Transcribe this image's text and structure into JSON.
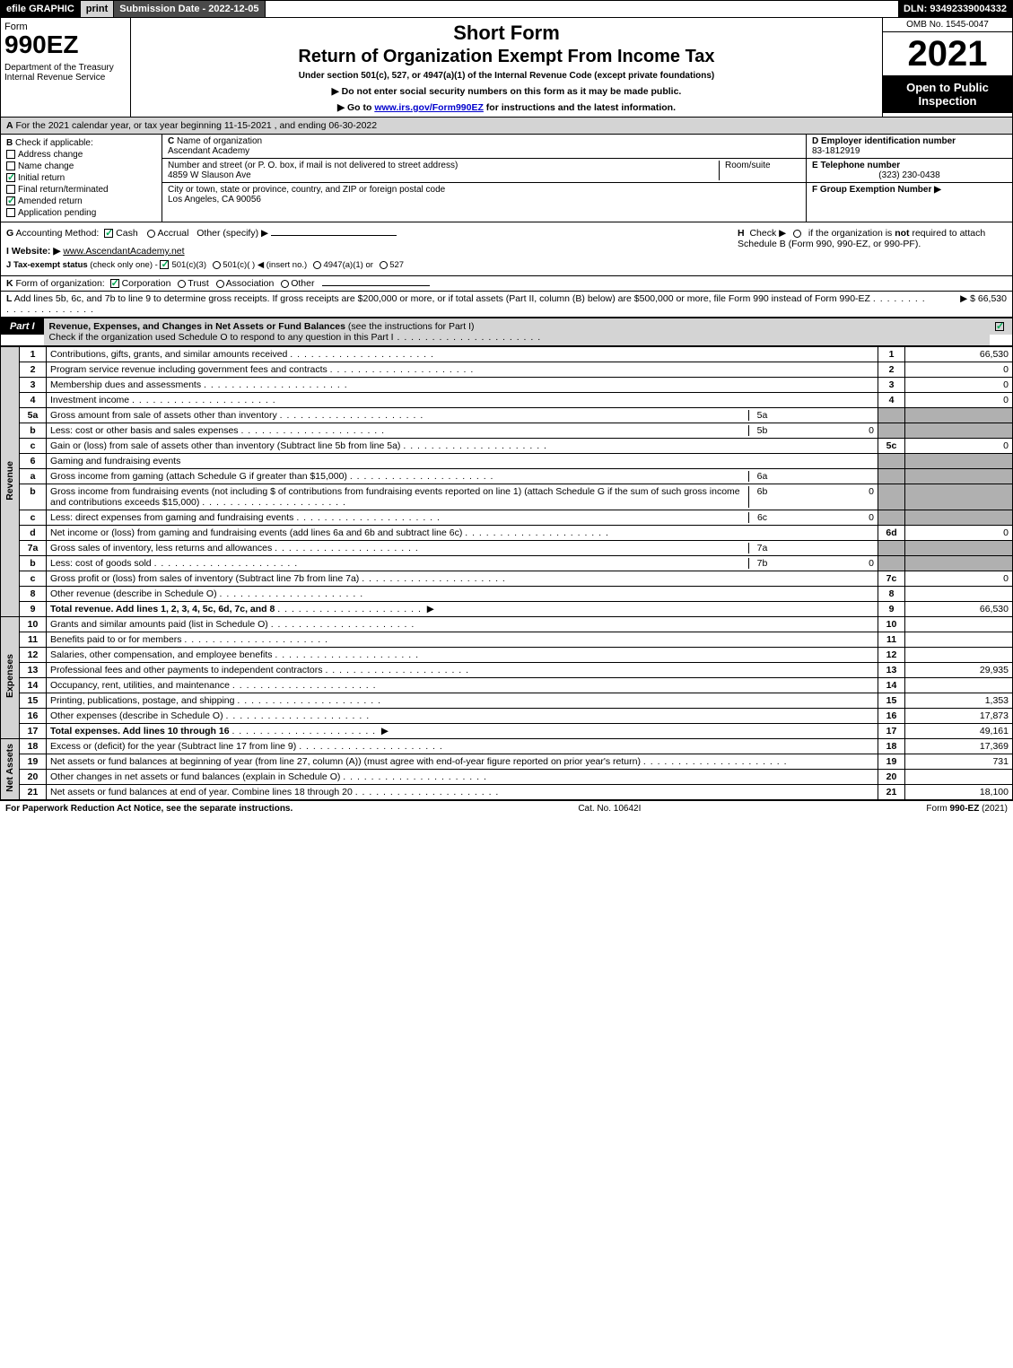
{
  "header_bar": {
    "efile": "efile GRAPHIC",
    "print": "print",
    "sub_date_lbl": "Submission Date - 2022-12-05",
    "dln": "DLN: 93492339004332"
  },
  "form_box": {
    "form_word": "Form",
    "form_no": "990EZ",
    "dept": "Department of the Treasury\nInternal Revenue Service"
  },
  "title": {
    "short": "Short Form",
    "return": "Return of Organization Exempt From Income Tax",
    "under": "Under section 501(c), 527, or 4947(a)(1) of the Internal Revenue Code (except private foundations)",
    "donot": "▶ Do not enter social security numbers on this form as it may be made public.",
    "goto_pre": "▶ Go to ",
    "goto_link": "www.irs.gov/Form990EZ",
    "goto_post": " for instructions and the latest information."
  },
  "right_box": {
    "omb": "OMB No. 1545-0047",
    "year": "2021",
    "open": "Open to Public Inspection"
  },
  "A": {
    "text": "For the 2021 calendar year, or tax year beginning 11-15-2021 , and ending 06-30-2022",
    "letter": "A"
  },
  "B": {
    "letter": "B",
    "label": "Check if applicable:",
    "items": [
      "Address change",
      "Name change",
      "Initial return",
      "Final return/terminated",
      "Amended return",
      "Application pending"
    ],
    "checked": [
      false,
      false,
      true,
      false,
      true,
      false
    ]
  },
  "C": {
    "letter": "C",
    "name_lbl": "Name of organization",
    "name": "Ascendant Academy",
    "street_lbl": "Number and street (or P. O. box, if mail is not delivered to street address)",
    "room_lbl": "Room/suite",
    "street": "4859 W Slauson Ave",
    "city_lbl": "City or town, state or province, country, and ZIP or foreign postal code",
    "city": "Los Angeles, CA  90056"
  },
  "D": {
    "ein_lbl": "D Employer identification number",
    "ein": "83-1812919",
    "tel_lbl": "E Telephone number",
    "tel": "(323) 230-0438",
    "grp_lbl": "F Group Exemption Number  ▶"
  },
  "G": {
    "text": "Accounting Method:",
    "letter": "G",
    "opts": {
      "cash": "Cash",
      "accrual": "Accrual",
      "other": "Other (specify) ▶"
    }
  },
  "H": {
    "text": "Check ▶",
    "letter": "H",
    "desc": "if the organization is ",
    "not": "not",
    "desc2": " required to attach Schedule B (Form 990, 990-EZ, or 990-PF)."
  },
  "I": {
    "letter": "I",
    "label": "Website: ▶",
    "val": "www.AscendantAcademy.net"
  },
  "J": {
    "letter": "J",
    "label": "Tax-exempt status",
    "sub": "(check only one) -",
    "o1": "501(c)(3)",
    "o2": "501(c)(  ) ◀ (insert no.)",
    "o3": "4947(a)(1) or",
    "o4": "527"
  },
  "K": {
    "letter": "K",
    "label": "Form of organization:",
    "opts": [
      "Corporation",
      "Trust",
      "Association",
      "Other"
    ]
  },
  "L": {
    "letter": "L",
    "text": "Add lines 5b, 6c, and 7b to line 9 to determine gross receipts. If gross receipts are $200,000 or more, or if total assets (Part II, column (B) below) are $500,000 or more, file Form 990 instead of Form 990-EZ",
    "amount": "▶ $ 66,530"
  },
  "part1": {
    "lbl": "Part I",
    "title": "Revenue, Expenses, and Changes in Net Assets or Fund Balances ",
    "sub": "(see the instructions for Part I)",
    "check_line": "Check if the organization used Schedule O to respond to any question in this Part I"
  },
  "revenue": {
    "tab": "Revenue",
    "lines": [
      {
        "n": "1",
        "d": "Contributions, gifts, grants, and similar amounts received",
        "rn": "1",
        "rv": "66,530"
      },
      {
        "n": "2",
        "d": "Program service revenue including government fees and contracts",
        "rn": "2",
        "rv": "0"
      },
      {
        "n": "3",
        "d": "Membership dues and assessments",
        "rn": "3",
        "rv": "0"
      },
      {
        "n": "4",
        "d": "Investment income",
        "rn": "4",
        "rv": "0"
      },
      {
        "n": "5a",
        "d": "Gross amount from sale of assets other than inventory",
        "sn": "5a",
        "sv": ""
      },
      {
        "n": "b",
        "d": "Less: cost or other basis and sales expenses",
        "sn": "5b",
        "sv": "0"
      },
      {
        "n": "c",
        "d": "Gain or (loss) from sale of assets other than inventory (Subtract line 5b from line 5a)",
        "rn": "5c",
        "rv": "0"
      },
      {
        "n": "6",
        "d": "Gaming and fundraising events"
      },
      {
        "n": "a",
        "d": "Gross income from gaming (attach Schedule G if greater than $15,000)",
        "sn": "6a",
        "sv": ""
      },
      {
        "n": "b",
        "d": "Gross income from fundraising events (not including $               of contributions from fundraising events reported on line 1) (attach Schedule G if the sum of such gross income and contributions exceeds $15,000)",
        "sn": "6b",
        "sv": "0"
      },
      {
        "n": "c",
        "d": "Less: direct expenses from gaming and fundraising events",
        "sn": "6c",
        "sv": "0"
      },
      {
        "n": "d",
        "d": "Net income or (loss) from gaming and fundraising events (add lines 6a and 6b and subtract line 6c)",
        "rn": "6d",
        "rv": "0"
      },
      {
        "n": "7a",
        "d": "Gross sales of inventory, less returns and allowances",
        "sn": "7a",
        "sv": ""
      },
      {
        "n": "b",
        "d": "Less: cost of goods sold",
        "sn": "7b",
        "sv": "0"
      },
      {
        "n": "c",
        "d": "Gross profit or (loss) from sales of inventory (Subtract line 7b from line 7a)",
        "rn": "7c",
        "rv": "0"
      },
      {
        "n": "8",
        "d": "Other revenue (describe in Schedule O)",
        "rn": "8",
        "rv": ""
      },
      {
        "n": "9",
        "d": "Total revenue. Add lines 1, 2, 3, 4, 5c, 6d, 7c, and 8",
        "bold": true,
        "arrow": true,
        "rn": "9",
        "rv": "66,530"
      }
    ]
  },
  "expenses": {
    "tab": "Expenses",
    "lines": [
      {
        "n": "10",
        "d": "Grants and similar amounts paid (list in Schedule O)",
        "rn": "10",
        "rv": ""
      },
      {
        "n": "11",
        "d": "Benefits paid to or for members",
        "rn": "11",
        "rv": ""
      },
      {
        "n": "12",
        "d": "Salaries, other compensation, and employee benefits",
        "rn": "12",
        "rv": ""
      },
      {
        "n": "13",
        "d": "Professional fees and other payments to independent contractors",
        "rn": "13",
        "rv": "29,935"
      },
      {
        "n": "14",
        "d": "Occupancy, rent, utilities, and maintenance",
        "rn": "14",
        "rv": ""
      },
      {
        "n": "15",
        "d": "Printing, publications, postage, and shipping",
        "rn": "15",
        "rv": "1,353"
      },
      {
        "n": "16",
        "d": "Other expenses (describe in Schedule O)",
        "rn": "16",
        "rv": "17,873"
      },
      {
        "n": "17",
        "d": "Total expenses. Add lines 10 through 16",
        "bold": true,
        "arrow": true,
        "rn": "17",
        "rv": "49,161"
      }
    ]
  },
  "netassets": {
    "tab": "Net Assets",
    "lines": [
      {
        "n": "18",
        "d": "Excess or (deficit) for the year (Subtract line 17 from line 9)",
        "rn": "18",
        "rv": "17,369"
      },
      {
        "n": "19",
        "d": "Net assets or fund balances at beginning of year (from line 27, column (A)) (must agree with end-of-year figure reported on prior year's return)",
        "rn": "19",
        "rv": "731"
      },
      {
        "n": "20",
        "d": "Other changes in net assets or fund balances (explain in Schedule O)",
        "rn": "20",
        "rv": ""
      },
      {
        "n": "21",
        "d": "Net assets or fund balances at end of year. Combine lines 18 through 20",
        "rn": "21",
        "rv": "18,100"
      }
    ]
  },
  "footer": {
    "left": "For Paperwork Reduction Act Notice, see the separate instructions.",
    "mid": "Cat. No. 10642I",
    "right_pre": "Form ",
    "right_b": "990-EZ",
    "right_post": " (2021)"
  }
}
